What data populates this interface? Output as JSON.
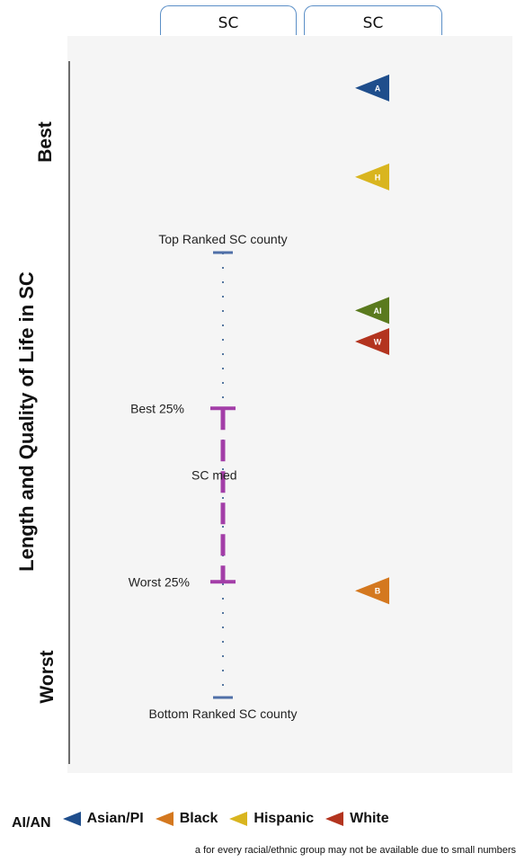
{
  "tabs": [
    "SC",
    "SC"
  ],
  "y_axis": {
    "label": "Length and Quality of Life in SC",
    "top": "Best",
    "bottom": "Worst"
  },
  "colors": {
    "ai_an": "#5a7a1e",
    "asian_pi": "#1f4e8c",
    "black": "#d4781f",
    "hispanic": "#d9b51f",
    "white": "#b3341f",
    "median": "#a33ea8",
    "county": "#4f6fa8"
  },
  "chart_data": {
    "type": "scatter",
    "title": "",
    "ylabel": "Length and Quality of Life in SC",
    "ylim": [
      0,
      100
    ],
    "y_direction": "higher is better",
    "reference": {
      "top_county": {
        "label": "Top Ranked SC county",
        "value": 100
      },
      "best_25": {
        "label": "Best 25%",
        "value": 65
      },
      "median": {
        "label": "SC med",
        "value": 50
      },
      "worst_25": {
        "label": "Worst 25%",
        "value": 26
      },
      "bottom_county": {
        "label": "Bottom Ranked SC county",
        "value": 0
      }
    },
    "series": [
      {
        "name": "AI/AN",
        "letter": "AI",
        "value": 87,
        "color": "#5a7a1e"
      },
      {
        "name": "Asian/PI",
        "letter": "A",
        "value": 137,
        "color": "#1f4e8c"
      },
      {
        "name": "Black",
        "letter": "B",
        "value": 24,
        "color": "#d4781f"
      },
      {
        "name": "Hispanic",
        "letter": "H",
        "value": 117,
        "color": "#d9b51f"
      },
      {
        "name": "White",
        "letter": "W",
        "value": 80,
        "color": "#b3341f"
      }
    ],
    "legend_position": "bottom"
  },
  "footnote": "a for every racial/ethnic group may not be available due to small numbers"
}
